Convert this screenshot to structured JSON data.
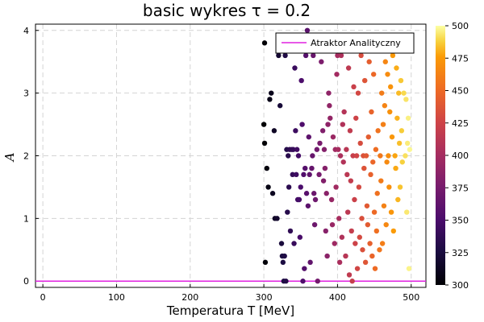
{
  "chart_data": {
    "type": "scatter",
    "title": "basic wykres τ = 0.2",
    "xlabel": "Temperatura T [MeV]",
    "ylabel": "A",
    "xlim": [
      -10,
      520
    ],
    "ylim": [
      -0.1,
      4.1
    ],
    "xticks": [
      "0",
      "100",
      "200",
      "300",
      "400",
      "500"
    ],
    "yticks": [
      "0",
      "1",
      "2",
      "3",
      "4"
    ],
    "grid": true,
    "legend": {
      "position": "top-right",
      "entries": [
        "Atraktor Analityczny"
      ]
    },
    "colorbar": {
      "min": 300,
      "max": 500,
      "ticks": [
        "300",
        "325",
        "350",
        "375",
        "400",
        "425",
        "450",
        "475",
        "500"
      ],
      "colormap": "inferno"
    },
    "line_series": {
      "name": "Atraktor Analityczny",
      "color": "#e020e0",
      "x": [
        -10,
        520
      ],
      "y": [
        0,
        0
      ]
    },
    "points": [
      [
        301,
        3.8
      ],
      [
        300,
        2.5
      ],
      [
        301,
        2.2
      ],
      [
        302,
        0.3
      ],
      [
        304,
        1.8
      ],
      [
        306,
        1.5
      ],
      [
        308,
        2.9
      ],
      [
        310,
        3.0
      ],
      [
        312,
        1.4
      ],
      [
        314,
        2.4
      ],
      [
        315,
        1.0
      ],
      [
        318,
        1.0
      ],
      [
        320,
        3.6
      ],
      [
        322,
        2.8
      ],
      [
        324,
        0.6
      ],
      [
        325,
        0.4
      ],
      [
        326,
        0.3
      ],
      [
        327,
        0.0
      ],
      [
        328,
        0.4
      ],
      [
        329,
        3.6
      ],
      [
        330,
        0.0
      ],
      [
        331,
        2.1
      ],
      [
        332,
        1.1
      ],
      [
        333,
        2.0
      ],
      [
        334,
        1.5
      ],
      [
        335,
        2.1
      ],
      [
        336,
        0.8
      ],
      [
        338,
        2.1
      ],
      [
        339,
        1.7
      ],
      [
        340,
        2.1
      ],
      [
        341,
        0.6
      ],
      [
        342,
        3.4
      ],
      [
        343,
        2.4
      ],
      [
        344,
        1.7
      ],
      [
        345,
        2.1
      ],
      [
        346,
        1.3
      ],
      [
        347,
        2.0
      ],
      [
        348,
        1.3
      ],
      [
        349,
        0.7
      ],
      [
        350,
        1.5
      ],
      [
        351,
        3.2
      ],
      [
        352,
        2.5
      ],
      [
        353,
        0.0
      ],
      [
        354,
        1.7
      ],
      [
        355,
        0.2
      ],
      [
        356,
        1.8
      ],
      [
        357,
        3.6
      ],
      [
        358,
        1.4
      ],
      [
        359,
        4.0
      ],
      [
        360,
        1.2
      ],
      [
        361,
        2.3
      ],
      [
        362,
        1.7
      ],
      [
        363,
        0.3
      ],
      [
        364,
        3.7
      ],
      [
        365,
        1.8
      ],
      [
        366,
        2.0
      ],
      [
        367,
        3.6
      ],
      [
        368,
        1.4
      ],
      [
        369,
        0.9
      ],
      [
        370,
        1.3
      ],
      [
        372,
        2.1
      ],
      [
        373,
        0.0
      ],
      [
        375,
        1.7
      ],
      [
        376,
        2.2
      ],
      [
        378,
        3.5
      ],
      [
        380,
        2.4
      ],
      [
        381,
        1.6
      ],
      [
        382,
        2.1
      ],
      [
        383,
        1.8
      ],
      [
        384,
        0.8
      ],
      [
        385,
        1.4
      ],
      [
        386,
        0.4
      ],
      [
        387,
        2.5
      ],
      [
        388,
        3.0
      ],
      [
        389,
        2.8
      ],
      [
        390,
        2.6
      ],
      [
        391,
        3.7
      ],
      [
        392,
        1.3
      ],
      [
        393,
        0.9
      ],
      [
        394,
        2.3
      ],
      [
        395,
        3.9
      ],
      [
        396,
        0.6
      ],
      [
        397,
        2.1
      ],
      [
        398,
        1.5
      ],
      [
        399,
        3.3
      ],
      [
        400,
        3.6
      ],
      [
        401,
        2.1
      ],
      [
        402,
        1.0
      ],
      [
        403,
        0.3
      ],
      [
        404,
        2.0
      ],
      [
        405,
        3.6
      ],
      [
        406,
        0.7
      ],
      [
        407,
        2.5
      ],
      [
        408,
        1.9
      ],
      [
        409,
        2.7
      ],
      [
        410,
        3.8
      ],
      [
        411,
        0.4
      ],
      [
        412,
        2.1
      ],
      [
        413,
        1.7
      ],
      [
        414,
        1.1
      ],
      [
        415,
        3.4
      ],
      [
        416,
        0.1
      ],
      [
        417,
        2.4
      ],
      [
        418,
        1.6
      ],
      [
        419,
        0.8
      ],
      [
        420,
        0.0
      ],
      [
        421,
        2.0
      ],
      [
        422,
        3.1
      ],
      [
        423,
        1.3
      ],
      [
        424,
        0.6
      ],
      [
        425,
        2.6
      ],
      [
        426,
        2.0
      ],
      [
        427,
        0.2
      ],
      [
        428,
        3.0
      ],
      [
        429,
        1.5
      ],
      [
        430,
        0.7
      ],
      [
        431,
        2.2
      ],
      [
        432,
        3.6
      ],
      [
        433,
        1.0
      ],
      [
        434,
        0.5
      ],
      [
        435,
        2.0
      ],
      [
        436,
        1.8
      ],
      [
        437,
        3.2
      ],
      [
        438,
        0.3
      ],
      [
        439,
        2.0
      ],
      [
        440,
        1.2
      ],
      [
        441,
        0.9
      ],
      [
        442,
        2.3
      ],
      [
        443,
        3.5
      ],
      [
        444,
        0.6
      ],
      [
        445,
        1.7
      ],
      [
        446,
        2.7
      ],
      [
        447,
        0.4
      ],
      [
        448,
        1.9
      ],
      [
        449,
        3.3
      ],
      [
        450,
        1.1
      ],
      [
        451,
        0.2
      ],
      [
        452,
        2.1
      ],
      [
        453,
        0.8
      ],
      [
        454,
        1.4
      ],
      [
        455,
        2.4
      ],
      [
        456,
        3.8
      ],
      [
        457,
        0.5
      ],
      [
        458,
        2.0
      ],
      [
        459,
        1.6
      ],
      [
        460,
        3.0
      ],
      [
        461,
        0.6
      ],
      [
        462,
        2.5
      ],
      [
        463,
        1.2
      ],
      [
        464,
        2.8
      ],
      [
        465,
        3.5
      ],
      [
        466,
        0.9
      ],
      [
        467,
        1.9
      ],
      [
        468,
        3.3
      ],
      [
        469,
        2.0
      ],
      [
        470,
        1.5
      ],
      [
        471,
        2.7
      ],
      [
        472,
        3.1
      ],
      [
        473,
        1.1
      ],
      [
        474,
        2.3
      ],
      [
        475,
        3.6
      ],
      [
        476,
        0.8
      ],
      [
        478,
        2.0
      ],
      [
        479,
        1.8
      ],
      [
        480,
        3.4
      ],
      [
        481,
        2.6
      ],
      [
        482,
        1.3
      ],
      [
        483,
        3.0
      ],
      [
        484,
        2.2
      ],
      [
        485,
        1.5
      ],
      [
        486,
        3.2
      ],
      [
        487,
        2.4
      ],
      [
        488,
        1.9
      ],
      [
        490,
        3.0
      ],
      [
        492,
        2.0
      ],
      [
        493,
        2.9
      ],
      [
        494,
        1.1
      ],
      [
        495,
        2.2
      ],
      [
        496,
        2.6
      ],
      [
        497,
        0.2
      ],
      [
        498,
        2.1
      ]
    ]
  }
}
